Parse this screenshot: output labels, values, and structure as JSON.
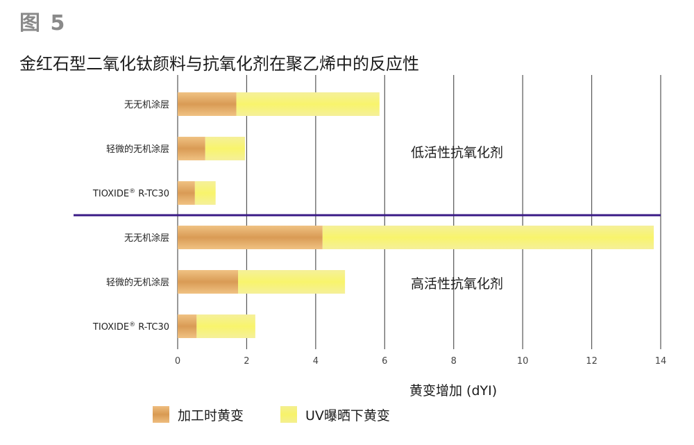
{
  "figure_label": "图 5",
  "title": "金红石型二氧化钛颜料与抗氧化剂在聚乙烯中的反应性",
  "chart_data": {
    "type": "bar",
    "orientation": "horizontal",
    "stacked": true,
    "xlabel": "黄变增加 (dYI)",
    "xlim": [
      0,
      14
    ],
    "xticks": [
      0,
      2,
      4,
      6,
      8,
      10,
      12,
      14
    ],
    "grid": true,
    "legend_placement": "bottom",
    "groups": [
      {
        "label": "低活性抗氧化剂",
        "categories": [
          "无无机涂层",
          "轻微的无机涂层",
          "TIOXIDE® R-TC30"
        ],
        "series": [
          {
            "name": "加工时黄变",
            "values": [
              1.7,
              0.8,
              0.5
            ]
          },
          {
            "name": "UV曝晒下黄变",
            "values": [
              4.15,
              1.15,
              0.6
            ]
          }
        ]
      },
      {
        "label": "高活性抗氧化剂",
        "categories": [
          "无无机涂层",
          "轻微的无机涂层",
          "TIOXIDE® R-TC30"
        ],
        "series": [
          {
            "name": "加工时黄变",
            "values": [
              4.2,
              1.75,
              0.55
            ]
          },
          {
            "name": "UV曝晒下黄变",
            "values": [
              9.6,
              3.1,
              1.7
            ]
          }
        ]
      }
    ],
    "colors": {
      "processing": "#e2a862",
      "uv": "#f6f27a",
      "divider": "#3a1a86",
      "grid": "#555555"
    }
  }
}
